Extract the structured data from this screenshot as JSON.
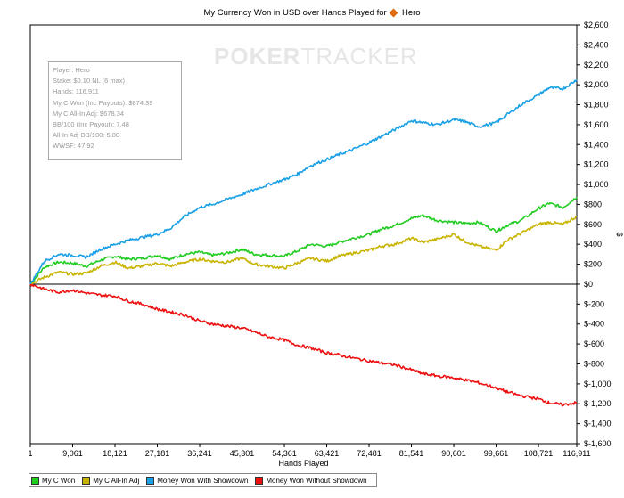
{
  "chart_data": {
    "type": "line",
    "title": "My Currency Won in USD over Hands Played for",
    "title_player": "Hero",
    "xlabel": "Hands Played",
    "ylabel": "$",
    "xlim": [
      1,
      116911
    ],
    "ylim": [
      -1600,
      2600
    ],
    "x_ticks": [
      "1",
      "9,061",
      "18,121",
      "27,181",
      "36,241",
      "45,301",
      "54,361",
      "63,421",
      "72,481",
      "81,541",
      "90,601",
      "99,661",
      "108,721",
      "116,911"
    ],
    "x_tick_values": [
      1,
      9061,
      18121,
      27181,
      36241,
      45301,
      54361,
      63421,
      72481,
      81541,
      90601,
      99661,
      108721,
      116911
    ],
    "y_ticks": [
      "$-1,600",
      "$-1,400",
      "$-1,200",
      "$-1,000",
      "$-800",
      "$-600",
      "$-400",
      "$-200",
      "$0",
      "$200",
      "$400",
      "$600",
      "$800",
      "$1,000",
      "$1,200",
      "$1,400",
      "$1,600",
      "$1,800",
      "$2,000",
      "$2,200",
      "$2,400",
      "$2,600"
    ],
    "y_tick_values": [
      -1600,
      -1400,
      -1200,
      -1000,
      -800,
      -600,
      -400,
      -200,
      0,
      200,
      400,
      600,
      800,
      1000,
      1200,
      1400,
      1600,
      1800,
      2000,
      2200,
      2400,
      2600
    ],
    "grid": false,
    "legend_position": "bottom-left",
    "x": [
      1,
      3000,
      6000,
      9061,
      12000,
      15000,
      18121,
      21000,
      24000,
      27181,
      30000,
      33000,
      36241,
      39000,
      42000,
      45301,
      48000,
      51000,
      54361,
      57000,
      60000,
      63421,
      66000,
      69000,
      72481,
      75000,
      78000,
      81541,
      84000,
      87000,
      90601,
      93000,
      96000,
      99661,
      102000,
      105000,
      108721,
      111000,
      114000,
      116911
    ],
    "series": [
      {
        "name": "My C Won",
        "color": "#22cc22",
        "values": [
          0,
          170,
          220,
          210,
          180,
          240,
          280,
          250,
          260,
          290,
          250,
          300,
          320,
          290,
          310,
          350,
          300,
          290,
          280,
          330,
          400,
          380,
          420,
          460,
          500,
          550,
          590,
          660,
          690,
          640,
          620,
          610,
          620,
          530,
          590,
          640,
          760,
          810,
          770,
          874
        ]
      },
      {
        "name": "My C All-In Adj",
        "color": "#c8b400",
        "values": [
          0,
          70,
          120,
          100,
          110,
          180,
          220,
          160,
          180,
          210,
          180,
          220,
          250,
          230,
          220,
          260,
          200,
          180,
          160,
          210,
          260,
          230,
          280,
          310,
          340,
          380,
          400,
          460,
          420,
          450,
          500,
          430,
          380,
          340,
          440,
          510,
          600,
          620,
          600,
          678
        ]
      },
      {
        "name": "Money Won With Showdown",
        "color": "#1aa0e6",
        "values": [
          0,
          230,
          300,
          290,
          270,
          350,
          400,
          440,
          470,
          500,
          560,
          680,
          770,
          800,
          850,
          900,
          950,
          1000,
          1050,
          1100,
          1190,
          1250,
          1300,
          1350,
          1420,
          1480,
          1550,
          1640,
          1620,
          1600,
          1650,
          1630,
          1580,
          1620,
          1700,
          1800,
          1900,
          1970,
          1960,
          2050
        ]
      },
      {
        "name": "Money Won Without Showdown",
        "color": "#ee1111",
        "values": [
          0,
          -50,
          -80,
          -60,
          -90,
          -110,
          -120,
          -170,
          -200,
          -250,
          -280,
          -310,
          -370,
          -400,
          -420,
          -440,
          -480,
          -530,
          -560,
          -610,
          -640,
          -690,
          -710,
          -740,
          -770,
          -790,
          -810,
          -860,
          -900,
          -920,
          -940,
          -960,
          -990,
          -1040,
          -1080,
          -1120,
          -1150,
          -1190,
          -1210,
          -1190
        ]
      }
    ]
  },
  "stats": {
    "player": "Player: Hero",
    "stake": "Stake: $0.10 NL (6 max)",
    "hands": "Hands: 116,911",
    "won": "My C Won (Inc Payouts): $874.39",
    "allin": "My C All-In Adj: $678.34",
    "bb100": "BB/100 (Inc Payout): 7.48",
    "allin_bb100": "All-In Adj BB/100: 5.80",
    "wwsf": "WWSF: 47.92"
  },
  "watermark": {
    "part1": "POKER",
    "part2": "TRACKER"
  }
}
